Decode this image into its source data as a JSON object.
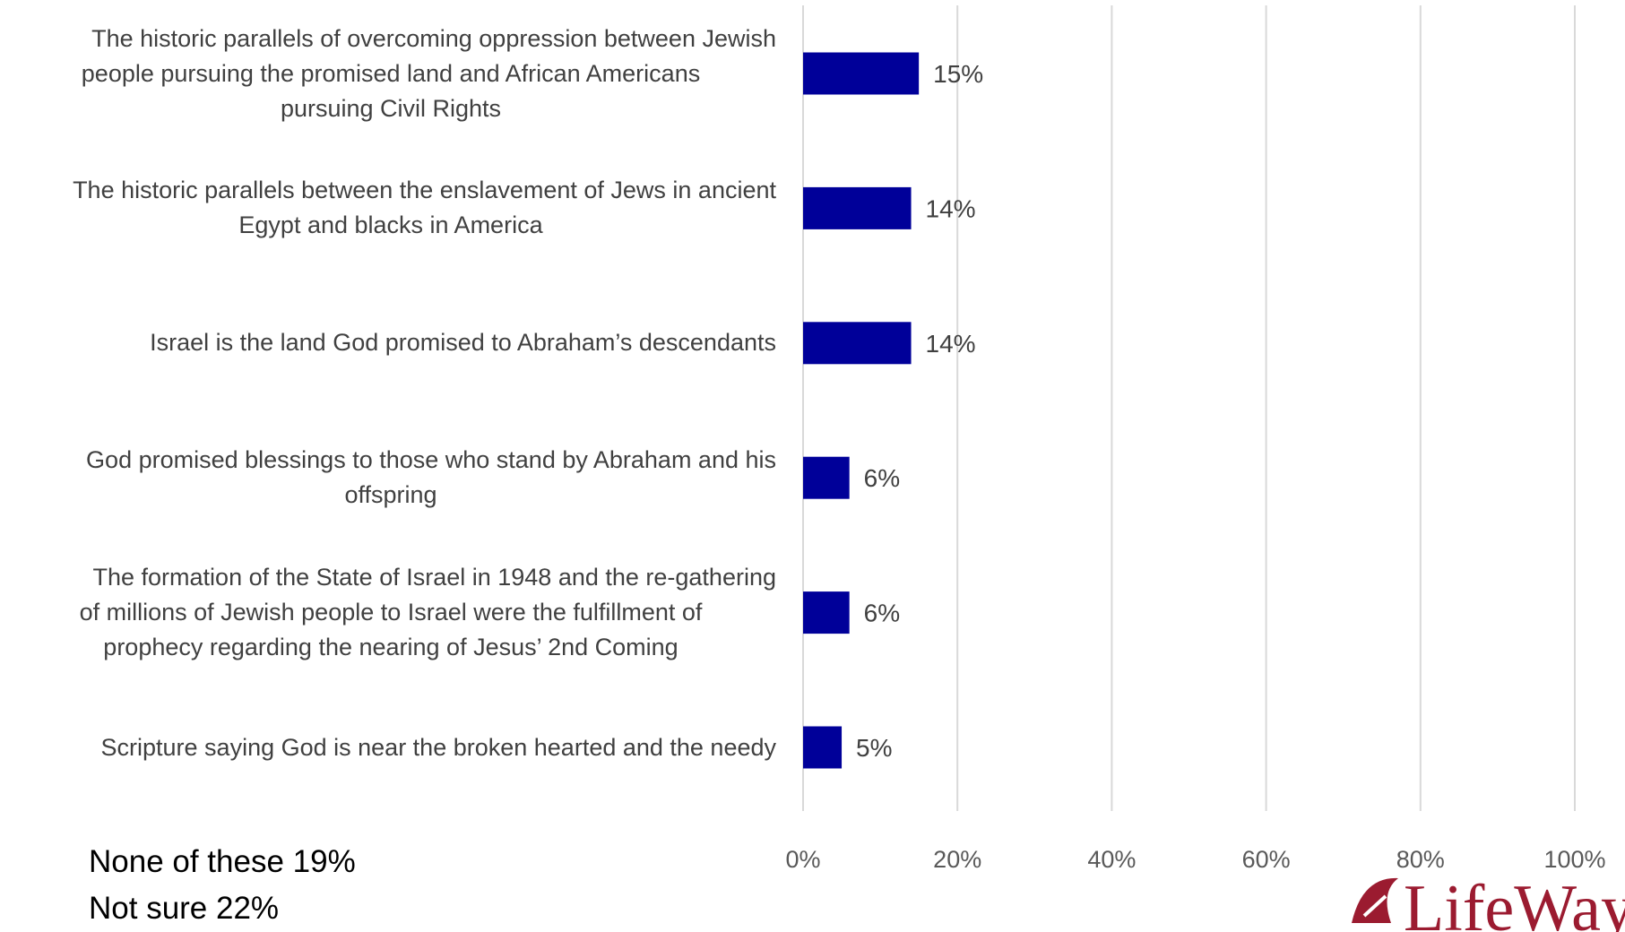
{
  "chart_data": {
    "type": "bar",
    "orientation": "horizontal",
    "categories": [
      [
        "The historic parallels of overcoming oppression between Jewish",
        "people pursuing the promised land and African Americans",
        "pursuing Civil Rights"
      ],
      [
        "The historic parallels between the enslavement of Jews in ancient",
        "Egypt and blacks in America"
      ],
      [
        "Israel is the land God promised to Abraham’s descendants"
      ],
      [
        "God promised blessings to those who stand by Abraham and his",
        "offspring"
      ],
      [
        "The formation of the State of Israel in 1948 and the re-gathering",
        "of millions of Jewish people to Israel were the fulfillment of",
        "prophecy regarding the nearing of Jesus’ 2nd Coming"
      ],
      [
        "Scripture saying God is near the broken hearted and the needy"
      ]
    ],
    "values": [
      15,
      14,
      14,
      6,
      6,
      5
    ],
    "value_labels": [
      "15%",
      "14%",
      "14%",
      "6%",
      "6%",
      "5%"
    ],
    "xlim": [
      0,
      100
    ],
    "x_ticks": [
      0,
      20,
      40,
      60,
      80,
      100
    ],
    "x_tick_labels": [
      "0%",
      "20%",
      "40%",
      "60%",
      "80%",
      "100%"
    ],
    "grid": true,
    "bar_color": "#000099",
    "grid_color": "#d9d9d9",
    "title": "",
    "xlabel": "",
    "ylabel": ""
  },
  "footnotes": {
    "none_of_these": "None of these 19%",
    "not_sure": "Not sure 22%"
  },
  "logo": {
    "icon": "lifeway-logo-icon",
    "text": "LifeWay",
    "color": "#9b1b30"
  }
}
